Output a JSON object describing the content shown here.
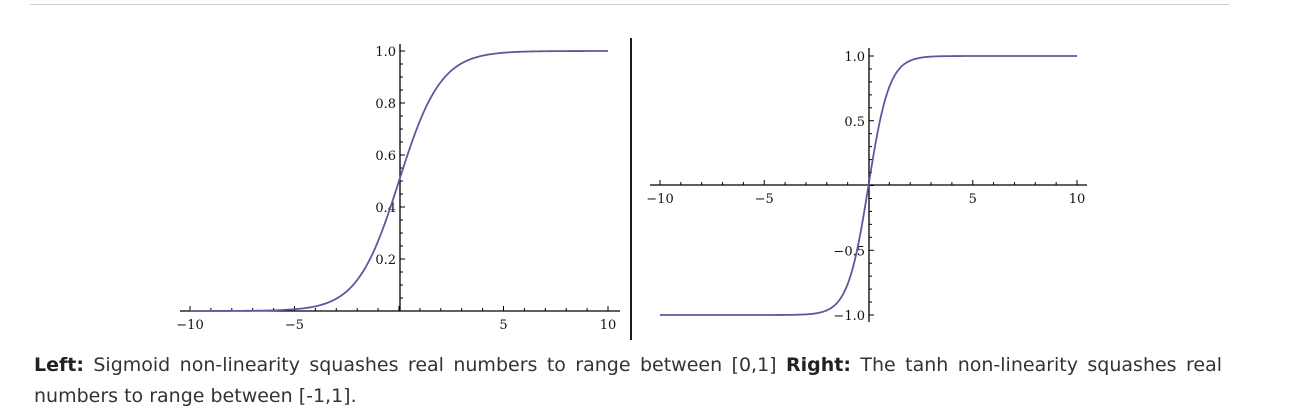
{
  "caption": {
    "left_heading": "Left:",
    "left_text": "Sigmoid non-linearity squashes real numbers to range between [0,1]",
    "right_heading": "Right:",
    "right_text": "The tanh non-linearity squashes real numbers to range between [-1,1]."
  },
  "colors": {
    "curve": "#5b5a9c",
    "axis": "#000000",
    "caption_text": "#333333"
  },
  "chart_data": [
    {
      "type": "line",
      "function": "sigmoid",
      "xlim": [
        -10,
        10
      ],
      "ylim": [
        0,
        1
      ],
      "xticks": [
        {
          "value": -10,
          "label": "-10"
        },
        {
          "value": -5,
          "label": "-5"
        },
        {
          "value": 5,
          "label": "5"
        },
        {
          "value": 10,
          "label": "10"
        }
      ],
      "yticks": [
        {
          "value": 0.2,
          "label": "0.2"
        },
        {
          "value": 0.4,
          "label": "0.4"
        },
        {
          "value": 0.6,
          "label": "0.6"
        },
        {
          "value": 0.8,
          "label": "0.8"
        },
        {
          "value": 1.0,
          "label": "1.0"
        }
      ],
      "x": [
        -10,
        -8,
        -6,
        -4,
        -3,
        -2,
        -1,
        0,
        1,
        2,
        3,
        4,
        6,
        8,
        10
      ],
      "y": [
        4.54e-05,
        0.000335,
        0.00247,
        0.018,
        0.0474,
        0.119,
        0.269,
        0.5,
        0.731,
        0.881,
        0.953,
        0.982,
        0.9975,
        0.99966,
        0.99995
      ],
      "grid": false
    },
    {
      "type": "line",
      "function": "tanh",
      "xlim": [
        -10,
        10
      ],
      "ylim": [
        -1,
        1
      ],
      "xticks": [
        {
          "value": -10,
          "label": "-10"
        },
        {
          "value": -5,
          "label": "-5"
        },
        {
          "value": 5,
          "label": "5"
        },
        {
          "value": 10,
          "label": "10"
        }
      ],
      "yticks": [
        {
          "value": -1.0,
          "label": "-1.0"
        },
        {
          "value": -0.5,
          "label": "-0.5"
        },
        {
          "value": 0.5,
          "label": "0.5"
        },
        {
          "value": 1.0,
          "label": "1.0"
        }
      ],
      "x": [
        -10,
        -4,
        -3,
        -2,
        -1,
        -0.5,
        0,
        0.5,
        1,
        2,
        3,
        4,
        10
      ],
      "y": [
        -1.0,
        -0.9993,
        -0.995,
        -0.964,
        -0.762,
        -0.462,
        0,
        0.462,
        0.762,
        0.964,
        0.995,
        0.9993,
        1.0
      ],
      "grid": false
    }
  ]
}
